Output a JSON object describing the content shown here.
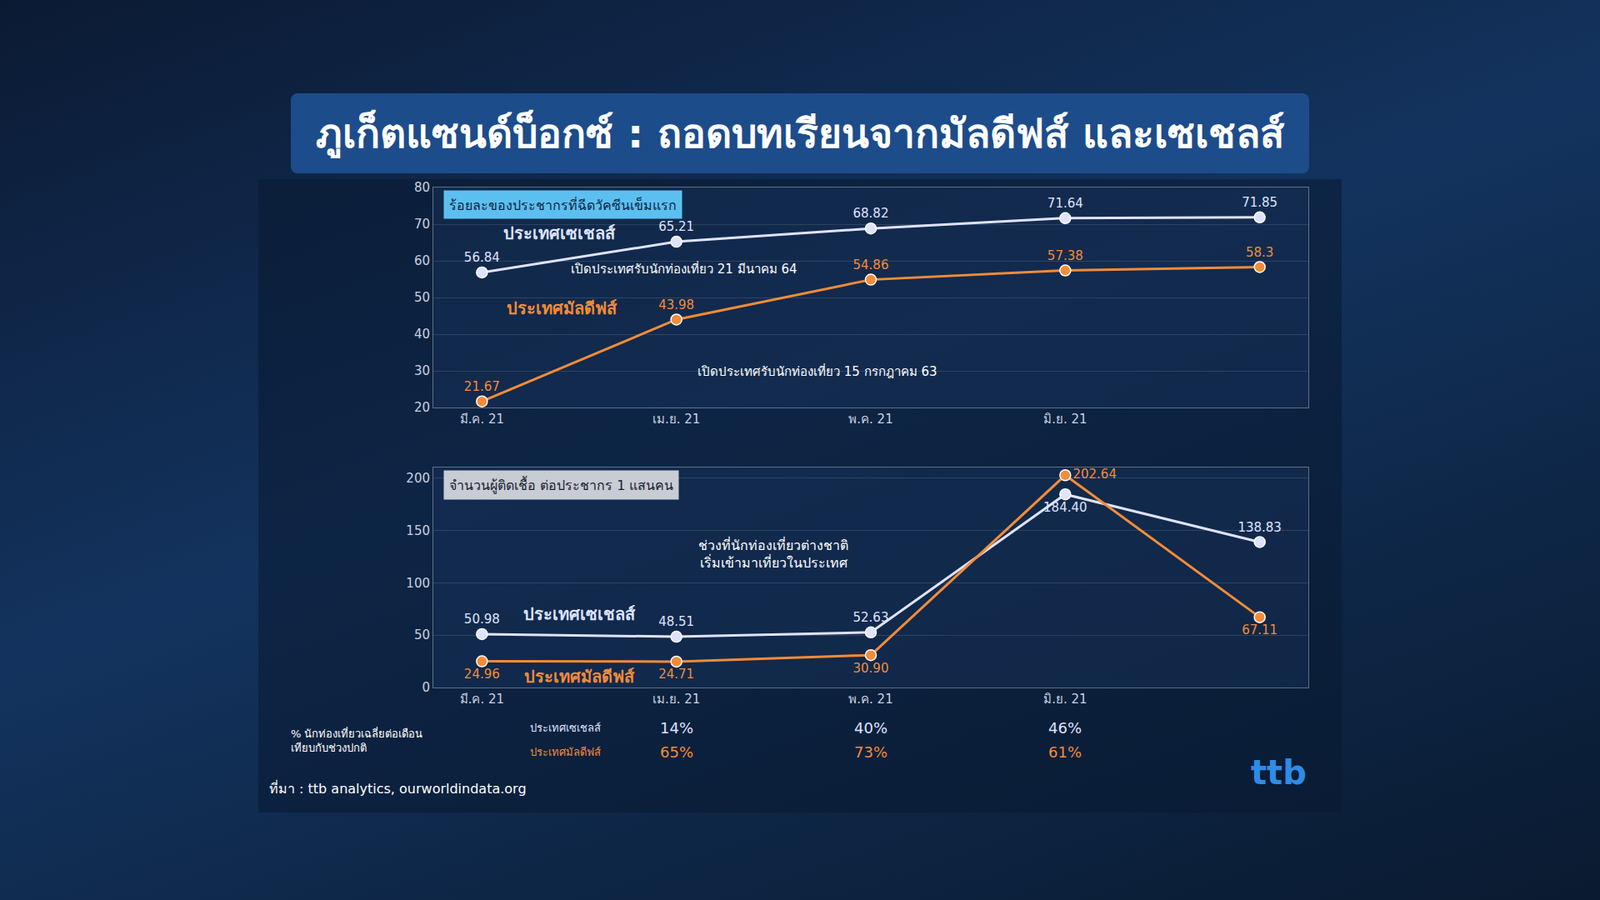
{
  "title": "ภูเก็ตแซนด์บ็อกซ์ : ถอดบทเรียนจากมัลดีฟส์ และเซเชลส์",
  "chart_data": [
    {
      "type": "line",
      "title": "ร้อยละของประชากรที่ฉีดวัคซีนเข็มแรก",
      "categories": [
        "มี.ค. 21",
        "เม.ย. 21",
        "พ.ค. 21",
        "มิ.ย. 21",
        null
      ],
      "series": [
        {
          "name": "ประเทศเซเชลส์",
          "color": "#dfe3ff",
          "values": [
            56.84,
            65.21,
            68.82,
            71.64,
            71.85
          ]
        },
        {
          "name": "ประเทศมัลดีฟส์",
          "color": "#f28c38",
          "values": [
            21.67,
            43.98,
            54.86,
            57.38,
            58.3
          ]
        }
      ],
      "notes": [
        {
          "series": "ประเทศเซเชลส์",
          "text": "เปิดประเทศรับนักท่องเที่ยว 21 มีนาคม 64"
        },
        {
          "series": "ประเทศมัลดีฟส์",
          "text": "เปิดประเทศรับนักท่องเที่ยว 15 กรกฎาคม 63"
        }
      ],
      "ylim": [
        20,
        80
      ],
      "yticks": [
        20,
        30,
        40,
        50,
        60,
        70,
        80
      ],
      "grid": true,
      "data_labels": true
    },
    {
      "type": "line",
      "title": "จำนวนผู้ติดเชื้อ ต่อประชากร 1 แสนคน",
      "categories": [
        "มี.ค. 21",
        "เม.ย. 21",
        "พ.ค. 21",
        "มิ.ย. 21",
        null
      ],
      "series": [
        {
          "name": "ประเทศเซเชลส์",
          "color": "#dfe3ff",
          "values": [
            50.98,
            48.51,
            52.63,
            184.4,
            138.83
          ],
          "value_labels": [
            "50.98",
            "48.51",
            "52.63",
            "184.40",
            "138.83"
          ]
        },
        {
          "name": "ประเทศมัลดีฟส์",
          "color": "#f28c38",
          "values": [
            24.96,
            24.71,
            30.9,
            202.64,
            67.11
          ],
          "value_labels": [
            "24.96",
            "24.71",
            "30.90",
            "202.64",
            "67.11"
          ]
        }
      ],
      "annotation_lines": [
        "ช่วงที่นักท่องเที่ยวต่างชาติ",
        "เริ่มเข้ามาเที่ยวในประเทศ"
      ],
      "ylim": [
        0,
        210
      ],
      "yticks": [
        0,
        50,
        100,
        150,
        200
      ],
      "grid": true,
      "data_labels": true
    }
  ],
  "table": {
    "header": [
      "% นักท่องเที่ยวเฉลี่ยต่อเดือน",
      "เทียบกับช่วงปกติ"
    ],
    "columns": [
      "เม.ย. 21",
      "พ.ค. 21",
      "มิ.ย. 21"
    ],
    "rows": [
      {
        "name": "ประเทศเซเชลส์",
        "values": [
          14,
          40,
          46
        ],
        "value_labels": [
          "14%",
          "40%",
          "46%"
        ]
      },
      {
        "name": "ประเทศมัลดีฟส์",
        "values": [
          65,
          73,
          61
        ],
        "value_labels": [
          "65%",
          "73%",
          "61%"
        ]
      }
    ]
  },
  "source": "ที่มา : ttb analytics, ourworldindata.org",
  "logo": "ttb"
}
